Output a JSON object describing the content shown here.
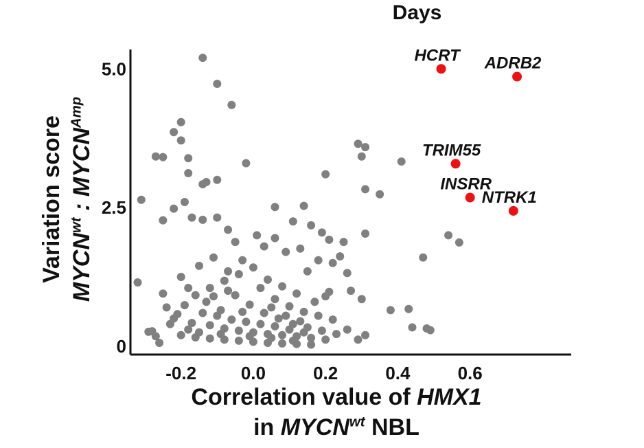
{
  "chart_data": {
    "type": "scatter",
    "title": "Days",
    "xlabel": {
      "line1_prefix": "Correlation value of ",
      "line1_gene": "HMX1",
      "line2_prefix": "in ",
      "line2_gene": "MYCN",
      "line2_sup": "wt",
      "line2_suffix": " NBL"
    },
    "ylabel": {
      "line1": "Variation score",
      "gene_a": "MYCN",
      "sup_a": "wt",
      "separator": " : ",
      "gene_b": "MYCN",
      "sup_b": "Amp"
    },
    "xlim": [
      -0.34,
      0.88
    ],
    "ylim": [
      -0.15,
      5.35
    ],
    "xticks": [
      -0.2,
      0.0,
      0.2,
      0.4,
      0.6
    ],
    "xtick_labels": [
      "-0.2",
      "0.0",
      "0.2",
      "0.4",
      "0.6"
    ],
    "yticks": [
      0,
      2.5,
      5.0
    ],
    "ytick_labels": [
      "0",
      "2.5",
      "5.0"
    ],
    "grid": false,
    "point_color": "#808080",
    "highlight_color": "#ee1111",
    "highlighted": [
      {
        "label": "HCRT",
        "x": 0.52,
        "y": 5.0
      },
      {
        "label": "ADRB2",
        "x": 0.73,
        "y": 4.86
      },
      {
        "label": "TRIM55",
        "x": 0.56,
        "y": 3.29
      },
      {
        "label": "INSRR",
        "x": 0.6,
        "y": 2.68
      },
      {
        "label": "NTRK1",
        "x": 0.72,
        "y": 2.44
      }
    ],
    "points": [
      [
        -0.14,
        5.2
      ],
      [
        -0.1,
        4.73
      ],
      [
        -0.06,
        4.35
      ],
      [
        -0.2,
        4.04
      ],
      [
        -0.22,
        3.86
      ],
      [
        -0.2,
        3.71
      ],
      [
        -0.27,
        3.42
      ],
      [
        -0.25,
        3.41
      ],
      [
        -0.18,
        3.39
      ],
      [
        -0.02,
        3.3
      ],
      [
        -0.18,
        3.12
      ],
      [
        -0.13,
        2.96
      ],
      [
        -0.14,
        2.92
      ],
      [
        -0.1,
        3.0
      ],
      [
        -0.31,
        2.64
      ],
      [
        -0.19,
        2.6
      ],
      [
        -0.22,
        2.48
      ],
      [
        -0.17,
        2.32
      ],
      [
        -0.25,
        2.27
      ],
      [
        -0.14,
        2.28
      ],
      [
        -0.1,
        2.32
      ],
      [
        0.06,
        2.51
      ],
      [
        0.14,
        2.53
      ],
      [
        0.2,
        3.1
      ],
      [
        0.29,
        3.65
      ],
      [
        0.31,
        3.59
      ],
      [
        0.3,
        3.42
      ],
      [
        0.41,
        3.33
      ],
      [
        0.31,
        2.83
      ],
      [
        0.35,
        2.74
      ],
      [
        0.31,
        2.03
      ],
      [
        0.25,
        1.88
      ],
      [
        0.54,
        2.0
      ],
      [
        0.57,
        1.87
      ],
      [
        0.47,
        1.6
      ],
      [
        -0.32,
        1.15
      ],
      [
        -0.07,
        2.1
      ],
      [
        0.01,
        2.0
      ],
      [
        0.06,
        1.95
      ],
      [
        0.11,
        2.25
      ],
      [
        0.16,
        2.18
      ],
      [
        0.19,
        2.05
      ],
      [
        0.21,
        1.92
      ],
      [
        -0.05,
        1.88
      ],
      [
        0.03,
        1.8
      ],
      [
        0.09,
        1.7
      ],
      [
        0.13,
        1.76
      ],
      [
        0.18,
        1.55
      ],
      [
        0.22,
        1.5
      ],
      [
        0.26,
        1.32
      ],
      [
        0.24,
        1.62
      ],
      [
        0.15,
        1.35
      ],
      [
        0.27,
        1.0
      ],
      [
        0.21,
        0.98
      ],
      [
        0.3,
        0.85
      ],
      [
        0.38,
        0.65
      ],
      [
        0.43,
        0.67
      ],
      [
        0.44,
        0.34
      ],
      [
        0.48,
        0.32
      ],
      [
        0.49,
        0.29
      ],
      [
        0.31,
        0.2
      ],
      [
        0.26,
        0.3
      ],
      [
        0.29,
        0.12
      ],
      [
        -0.28,
        0.27
      ],
      [
        -0.27,
        0.18
      ],
      [
        -0.26,
        0.06
      ],
      [
        -0.29,
        0.26
      ],
      [
        -0.23,
        0.4
      ],
      [
        -0.21,
        0.58
      ],
      [
        -0.19,
        0.74
      ],
      [
        -0.16,
        0.92
      ],
      [
        -0.12,
        1.05
      ],
      [
        -0.08,
        1.18
      ],
      [
        -0.04,
        1.3
      ],
      [
        0.0,
        1.42
      ],
      [
        0.04,
        1.2
      ],
      [
        0.08,
        1.08
      ],
      [
        0.12,
        0.95
      ],
      [
        -0.2,
        1.25
      ],
      [
        -0.15,
        1.45
      ],
      [
        -0.11,
        1.6
      ],
      [
        -0.07,
        1.35
      ],
      [
        -0.03,
        1.55
      ],
      [
        0.02,
        1.05
      ],
      [
        0.06,
        0.85
      ],
      [
        0.1,
        0.72
      ],
      [
        0.14,
        0.62
      ],
      [
        0.18,
        0.55
      ],
      [
        0.22,
        0.48
      ],
      [
        -0.25,
        0.95
      ],
      [
        -0.24,
        0.7
      ],
      [
        -0.18,
        1.05
      ],
      [
        -0.13,
        0.8
      ],
      [
        -0.09,
        0.65
      ],
      [
        -0.05,
        0.92
      ],
      [
        -0.01,
        0.75
      ],
      [
        0.03,
        0.6
      ],
      [
        0.07,
        0.5
      ],
      [
        0.11,
        0.4
      ],
      [
        0.15,
        0.34
      ],
      [
        0.19,
        0.28
      ],
      [
        0.23,
        0.22
      ],
      [
        -0.22,
        0.5
      ],
      [
        -0.17,
        0.42
      ],
      [
        -0.12,
        0.38
      ],
      [
        -0.08,
        0.32
      ],
      [
        -0.04,
        0.28
      ],
      [
        0.0,
        0.25
      ],
      [
        0.04,
        0.22
      ],
      [
        0.08,
        0.2
      ],
      [
        0.12,
        0.18
      ],
      [
        0.16,
        0.15
      ],
      [
        0.2,
        0.12
      ],
      [
        -0.2,
        0.2
      ],
      [
        -0.16,
        0.16
      ],
      [
        -0.12,
        0.14
      ],
      [
        -0.08,
        0.12
      ],
      [
        -0.04,
        0.1
      ],
      [
        0.0,
        0.08
      ],
      [
        0.04,
        0.06
      ],
      [
        0.08,
        0.05
      ],
      [
        0.12,
        0.04
      ],
      [
        0.16,
        0.03
      ],
      [
        -0.1,
        0.55
      ],
      [
        -0.06,
        0.48
      ],
      [
        -0.02,
        0.44
      ],
      [
        0.02,
        0.4
      ],
      [
        0.06,
        0.36
      ],
      [
        0.1,
        0.3
      ],
      [
        -0.14,
        0.6
      ],
      [
        -0.18,
        0.3
      ],
      [
        0.17,
        0.8
      ],
      [
        0.2,
        0.9
      ],
      [
        -0.03,
        0.62
      ],
      [
        0.05,
        0.7
      ],
      [
        -0.11,
        0.9
      ],
      [
        -0.07,
        1.0
      ],
      [
        0.09,
        0.55
      ],
      [
        0.13,
        0.45
      ],
      [
        -0.15,
        0.25
      ],
      [
        -0.01,
        0.18
      ],
      [
        0.05,
        0.15
      ],
      [
        0.11,
        0.1
      ],
      [
        -0.09,
        0.22
      ],
      [
        0.14,
        0.25
      ]
    ]
  }
}
